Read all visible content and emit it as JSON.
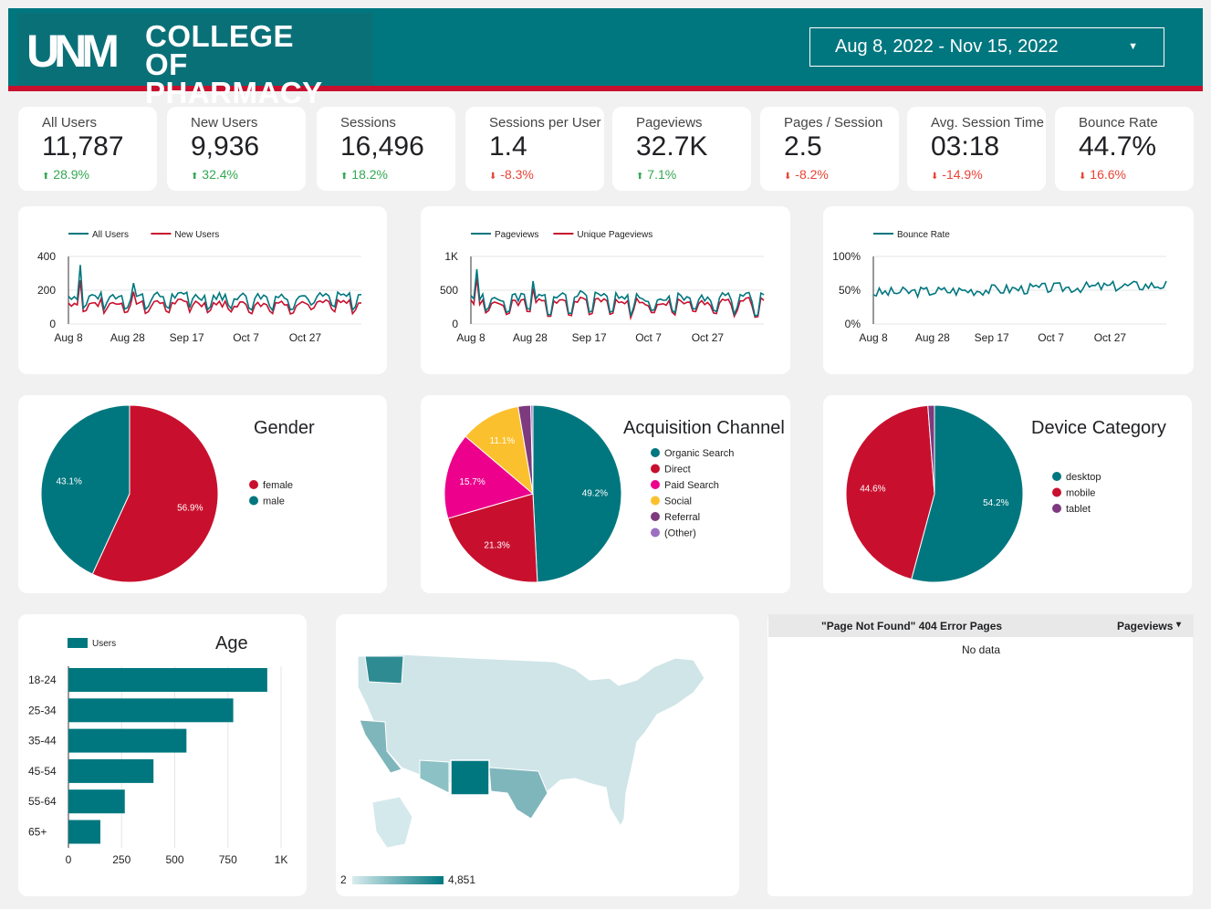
{
  "header": {
    "logo_mark": "UNM",
    "logo_line1": "COLLEGE",
    "logo_line2": "OF PHARMACY",
    "date_range": "Aug 8, 2022 - Nov 15, 2022",
    "caret": "▼"
  },
  "colors": {
    "teal": "#00777f",
    "red": "#c8102e",
    "pink": "#ec008c",
    "yellow": "#fbc02d",
    "purple": "#7e3a7e",
    "lavender": "#9c6fc2"
  },
  "kpis": [
    {
      "label": "All Users",
      "value": "11,787",
      "delta": "28.9%",
      "dir": "up"
    },
    {
      "label": "New Users",
      "value": "9,936",
      "delta": "32.4%",
      "dir": "up"
    },
    {
      "label": "Sessions",
      "value": "16,496",
      "delta": "18.2%",
      "dir": "up"
    },
    {
      "label": "Sessions per User",
      "value": "1.4",
      "delta": "-8.3%",
      "dir": "down"
    },
    {
      "label": "Pageviews",
      "value": "32.7K",
      "delta": "7.1%",
      "dir": "up"
    },
    {
      "label": "Pages / Session",
      "value": "2.5",
      "delta": "-8.2%",
      "dir": "down"
    },
    {
      "label": "Avg. Session Time",
      "value": "03:18",
      "delta": "-14.9%",
      "dir": "down"
    },
    {
      "label": "Bounce Rate",
      "value": "44.7%",
      "delta": "16.6%",
      "dir": "down"
    }
  ],
  "chart_data": [
    {
      "type": "line",
      "id": "users",
      "series": [
        {
          "name": "All Users",
          "color": "#00777f"
        },
        {
          "name": "New Users",
          "color": "#c8102e"
        }
      ],
      "x_ticks": [
        "Aug 8",
        "Aug 28",
        "Sep 17",
        "Oct 7",
        "Oct 27"
      ],
      "y_ticks": [
        "400",
        "200",
        "0"
      ],
      "ylim": [
        0,
        400
      ]
    },
    {
      "type": "line",
      "id": "pageviews",
      "series": [
        {
          "name": "Pageviews",
          "color": "#00777f"
        },
        {
          "name": "Unique Pageviews",
          "color": "#c8102e"
        }
      ],
      "x_ticks": [
        "Aug 8",
        "Aug 28",
        "Sep 17",
        "Oct 7",
        "Oct 27"
      ],
      "y_ticks": [
        "1K",
        "500",
        "0"
      ],
      "ylim": [
        0,
        1000
      ]
    },
    {
      "type": "line",
      "id": "bounce",
      "series": [
        {
          "name": "Bounce Rate",
          "color": "#00777f"
        }
      ],
      "x_ticks": [
        "Aug 8",
        "Aug 28",
        "Sep 17",
        "Oct 7",
        "Oct 27"
      ],
      "y_ticks": [
        "100%",
        "50%",
        "0%"
      ],
      "ylim": [
        0,
        100
      ]
    },
    {
      "type": "pie",
      "id": "gender",
      "title": "Gender",
      "slices": [
        {
          "label": "female",
          "value": 56.9,
          "text": "56.9%",
          "color": "#c8102e"
        },
        {
          "label": "male",
          "value": 43.1,
          "text": "43.1%",
          "color": "#00777f"
        }
      ]
    },
    {
      "type": "pie",
      "id": "channel",
      "title": "Acquisition Channel",
      "slices": [
        {
          "label": "Organic Search",
          "value": 49.2,
          "text": "49.2%",
          "color": "#00777f"
        },
        {
          "label": "Direct",
          "value": 21.3,
          "text": "21.3%",
          "color": "#c8102e"
        },
        {
          "label": "Paid Search",
          "value": 15.7,
          "text": "15.7%",
          "color": "#ec008c"
        },
        {
          "label": "Social",
          "value": 11.1,
          "text": "11.1%",
          "color": "#fbc02d"
        },
        {
          "label": "Referral",
          "value": 2.3,
          "text": "",
          "color": "#7e3a7e"
        },
        {
          "label": "(Other)",
          "value": 0.4,
          "text": "",
          "color": "#9c6fc2"
        }
      ]
    },
    {
      "type": "pie",
      "id": "device",
      "title": "Device Category",
      "slices": [
        {
          "label": "desktop",
          "value": 54.2,
          "text": "54.2%",
          "color": "#00777f"
        },
        {
          "label": "mobile",
          "value": 44.6,
          "text": "44.6%",
          "color": "#c8102e"
        },
        {
          "label": "tablet",
          "value": 1.2,
          "text": "",
          "color": "#7e3a7e"
        }
      ]
    },
    {
      "type": "bar",
      "id": "age",
      "title": "Age",
      "orientation": "horizontal",
      "series_name": "Users",
      "categories": [
        "18-24",
        "25-34",
        "35-44",
        "45-54",
        "55-64",
        "65+"
      ],
      "values": [
        935,
        775,
        555,
        400,
        265,
        150
      ],
      "x_ticks": [
        "0",
        "250",
        "500",
        "750",
        "1K"
      ],
      "xlim": [
        0,
        1000
      ]
    }
  ],
  "map": {
    "min_label": "2",
    "max_label": "4,851"
  },
  "table": {
    "col1": "\"Page Not Found\" 404 Error Pages",
    "col2": "Pageviews",
    "sort_icon": "▾",
    "empty": "No data"
  }
}
